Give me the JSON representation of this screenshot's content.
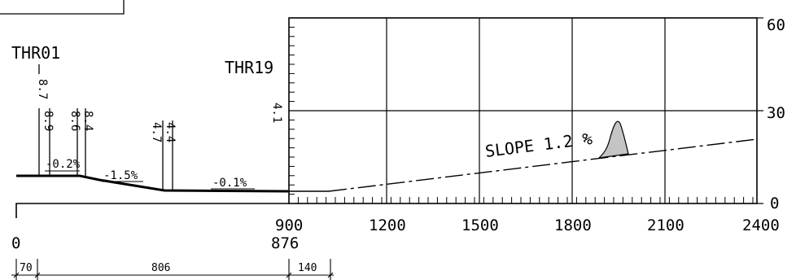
{
  "thresholds": {
    "left": {
      "name": "THR01",
      "elevations": [
        "8.7",
        "8.9",
        "8.6",
        "8.4",
        "4.7",
        "4.4"
      ]
    },
    "right": {
      "name": "THR19",
      "elevation": "4.1"
    }
  },
  "runway_slopes": [
    "-0.2%",
    "-1.5%",
    "-0.1%"
  ],
  "obstacle_chart": {
    "slope_label": "SLOPE 1.2 %",
    "x_ticks": [
      "900",
      "1200",
      "1500",
      "1800",
      "2100",
      "2400"
    ],
    "y_ticks": [
      "0",
      "30",
      "60"
    ],
    "x_range": [
      900,
      2400
    ],
    "y_range": [
      0,
      60
    ]
  },
  "distance_axis": {
    "start": "0",
    "end": "876"
  },
  "dimensions": [
    "70",
    "806",
    "140"
  ],
  "colors": {
    "line": "#000000",
    "obstacle_fill": "#c4c4c4"
  }
}
